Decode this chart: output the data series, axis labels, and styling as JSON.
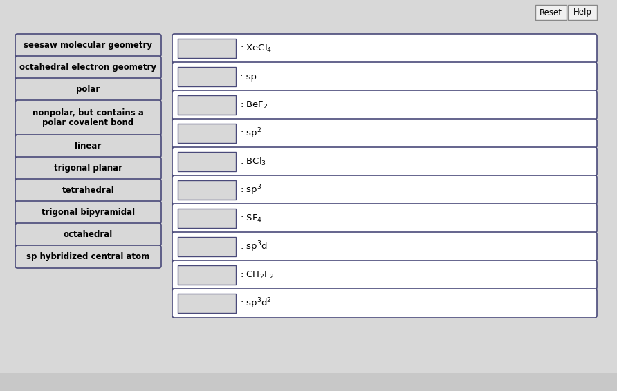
{
  "background_color": "#d8d8d8",
  "left_buttons": [
    "seesaw molecular geometry",
    "octahedral electron geometry",
    "polar",
    "nonpolar, but contains a\npolar covalent bond",
    "linear",
    "trigonal planar",
    "tetrahedral",
    "trigonal bipyramidal",
    "octahedral",
    "sp hybridized central atom"
  ],
  "right_label_texts": [
    ": XeCl$_4$",
    ": sp",
    ": BeF$_2$",
    ": sp$^2$",
    ": BCl$_3$",
    ": sp$^3$",
    ": SF$_4$",
    ": sp$^3$d",
    ": CH$_2$F$_2$",
    ": sp$^3$d$^2$"
  ],
  "button_bg": "#d8d8d8",
  "button_border": "#4a4a7a",
  "drop_bg": "#d8d8d8",
  "drop_border": "#4a4a7a",
  "outer_bg": "white",
  "top_buttons": [
    "Reset",
    "Help"
  ],
  "font_size": 8.5
}
